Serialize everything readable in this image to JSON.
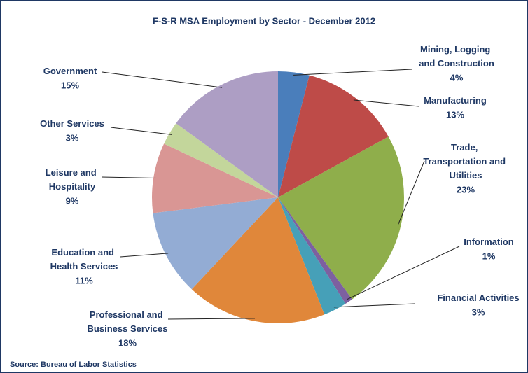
{
  "chart_data": {
    "type": "pie",
    "title": "F-S-R MSA Employment by Sector - December 2012",
    "source": "Source: Bureau of Labor Statistics",
    "categories": [
      "Mining, Logging and Construction",
      "Manufacturing",
      "Trade, Transportation and Utilities",
      "Information",
      "Financial Activities",
      "Professional and Business Services",
      "Education and Health Services",
      "Leisure and Hospitality",
      "Other Services",
      "Government"
    ],
    "values": [
      4,
      13,
      23,
      1,
      3,
      18,
      11,
      9,
      3,
      15
    ],
    "value_labels": [
      "4%",
      "13%",
      "23%",
      "1%",
      "3%",
      "18%",
      "11%",
      "9%",
      "3%",
      "15%"
    ],
    "colors": [
      "#4a7ebb",
      "#be4b48",
      "#8fae4b",
      "#7d60a0",
      "#46a0b8",
      "#e0873a",
      "#93acd4",
      "#d99694",
      "#c3d69b",
      "#ad9ec4"
    ]
  }
}
